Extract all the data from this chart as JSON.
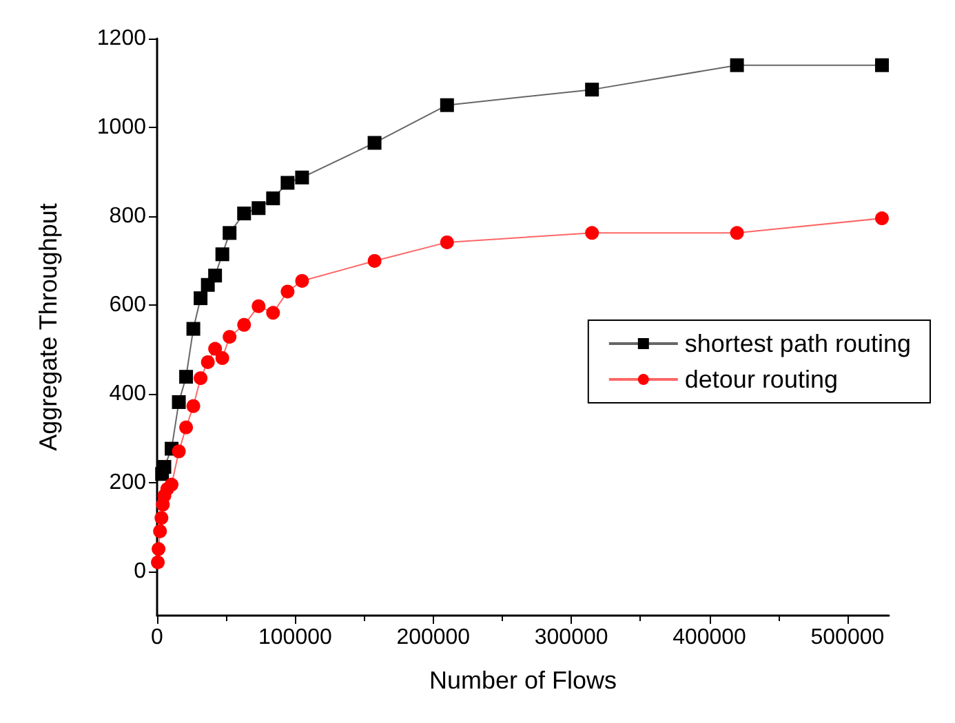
{
  "chart_data": {
    "type": "line",
    "xlabel": "Number of Flows",
    "ylabel": "Aggregate Throughput",
    "xlim": [
      0,
      530000
    ],
    "ylim": [
      -100,
      1200
    ],
    "xticks": [
      0,
      100000,
      200000,
      300000,
      400000,
      500000
    ],
    "yticks": [
      0,
      200,
      400,
      600,
      800,
      1000,
      1200
    ],
    "grid": false,
    "legend": "right",
    "series": [
      {
        "name": "shortest path routing",
        "color": "#000000",
        "marker": "square",
        "x": [
          3600,
          5250,
          10500,
          15750,
          21000,
          26250,
          31500,
          36750,
          42000,
          47250,
          52500,
          63000,
          73500,
          84000,
          94500,
          105000,
          157500,
          210000,
          315000,
          420000,
          525000
        ],
        "values": [
          219,
          235,
          276,
          381,
          438,
          546,
          615,
          645,
          666,
          714,
          762,
          806,
          818,
          840,
          875,
          887,
          965,
          1050,
          1085,
          1140,
          1140
        ]
      },
      {
        "name": "detour routing",
        "color": "#ff0000",
        "marker": "circle",
        "x": [
          525,
          1050,
          2100,
          3150,
          4200,
          5250,
          7350,
          10500,
          15750,
          21000,
          26250,
          31500,
          36750,
          42000,
          47250,
          52500,
          63000,
          73500,
          84000,
          94500,
          105000,
          157500,
          210000,
          315000,
          420000,
          525000
        ],
        "values": [
          20,
          50,
          90,
          120,
          150,
          170,
          185,
          195,
          270,
          324,
          372,
          435,
          471,
          501,
          480,
          528,
          555,
          597,
          582,
          630,
          654,
          699,
          741,
          762,
          762,
          795
        ]
      }
    ]
  }
}
